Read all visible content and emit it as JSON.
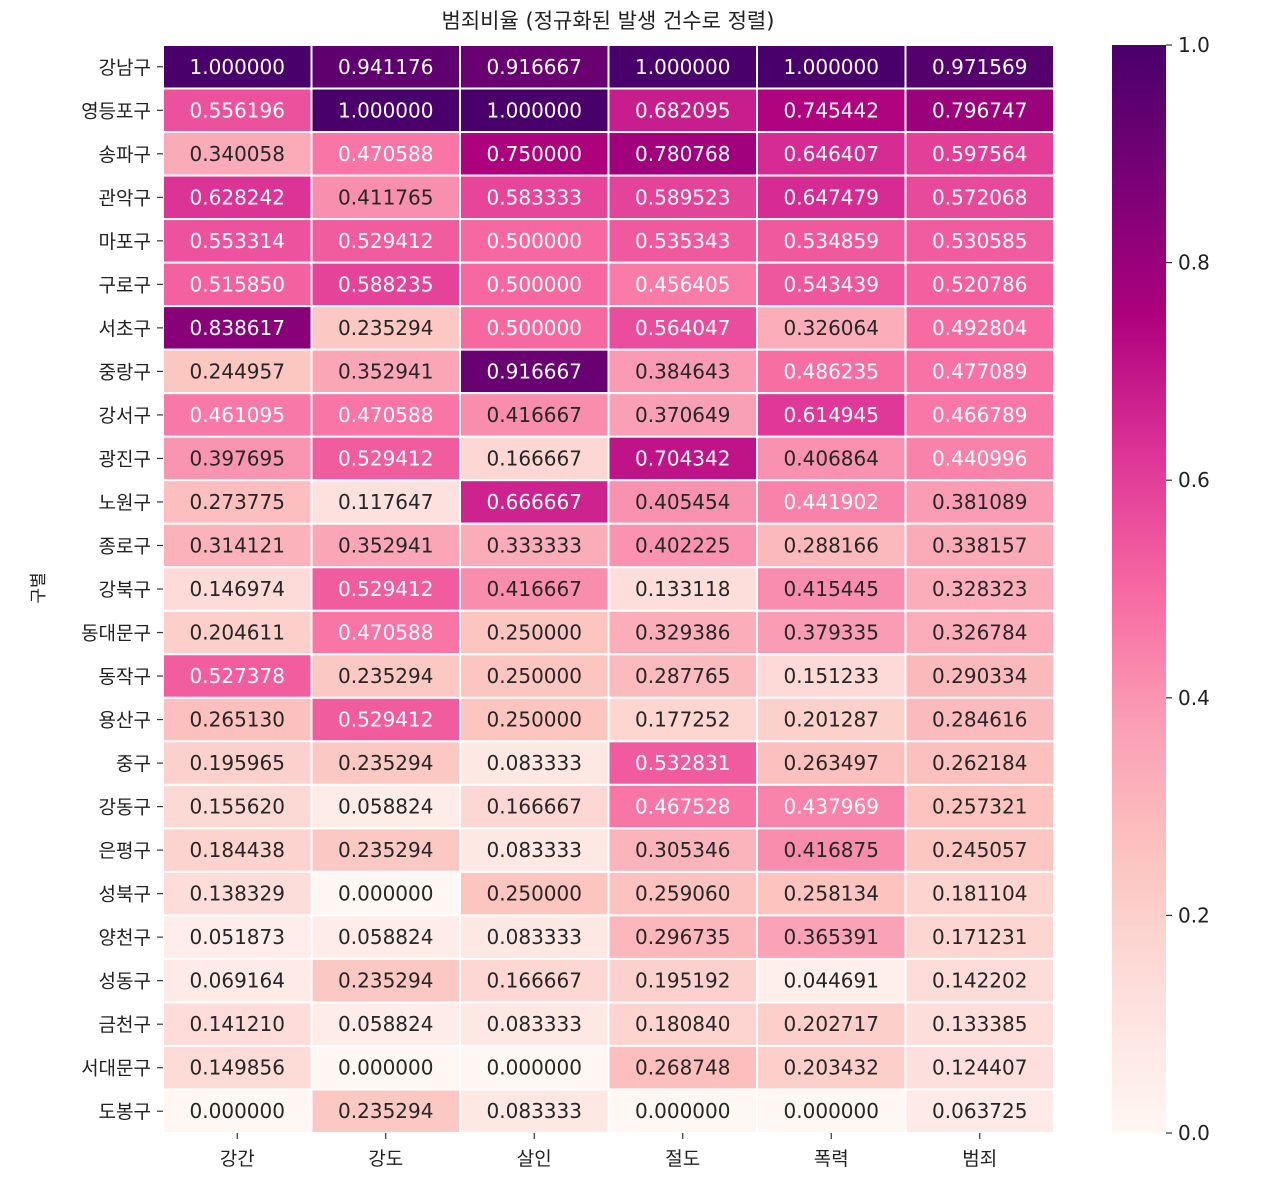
{
  "chart_data": {
    "type": "heatmap",
    "title": "범죄비율 (정규화된 발생 건수로 정렬)",
    "xlabel": "",
    "ylabel": "구별",
    "colormap": "RdPu",
    "colorbar": {
      "range": [
        0.0,
        1.0
      ],
      "ticks": [
        "0.0",
        "0.2",
        "0.4",
        "0.6",
        "0.8",
        "1.0"
      ]
    },
    "columns": [
      "강간",
      "강도",
      "살인",
      "절도",
      "폭력",
      "범죄"
    ],
    "rows": [
      "강남구",
      "영등포구",
      "송파구",
      "관악구",
      "마포구",
      "구로구",
      "서초구",
      "중랑구",
      "강서구",
      "광진구",
      "노원구",
      "종로구",
      "강북구",
      "동대문구",
      "동작구",
      "용산구",
      "중구",
      "강동구",
      "은평구",
      "성북구",
      "양천구",
      "성동구",
      "금천구",
      "서대문구",
      "도봉구"
    ],
    "values": [
      [
        "1.000000",
        "0.941176",
        "0.916667",
        "1.000000",
        "1.000000",
        "0.971569"
      ],
      [
        "0.556196",
        "1.000000",
        "1.000000",
        "0.682095",
        "0.745442",
        "0.796747"
      ],
      [
        "0.340058",
        "0.470588",
        "0.750000",
        "0.780768",
        "0.646407",
        "0.597564"
      ],
      [
        "0.628242",
        "0.411765",
        "0.583333",
        "0.589523",
        "0.647479",
        "0.572068"
      ],
      [
        "0.553314",
        "0.529412",
        "0.500000",
        "0.535343",
        "0.534859",
        "0.530585"
      ],
      [
        "0.515850",
        "0.588235",
        "0.500000",
        "0.456405",
        "0.543439",
        "0.520786"
      ],
      [
        "0.838617",
        "0.235294",
        "0.500000",
        "0.564047",
        "0.326064",
        "0.492804"
      ],
      [
        "0.244957",
        "0.352941",
        "0.916667",
        "0.384643",
        "0.486235",
        "0.477089"
      ],
      [
        "0.461095",
        "0.470588",
        "0.416667",
        "0.370649",
        "0.614945",
        "0.466789"
      ],
      [
        "0.397695",
        "0.529412",
        "0.166667",
        "0.704342",
        "0.406864",
        "0.440996"
      ],
      [
        "0.273775",
        "0.117647",
        "0.666667",
        "0.405454",
        "0.441902",
        "0.381089"
      ],
      [
        "0.314121",
        "0.352941",
        "0.333333",
        "0.402225",
        "0.288166",
        "0.338157"
      ],
      [
        "0.146974",
        "0.529412",
        "0.416667",
        "0.133118",
        "0.415445",
        "0.328323"
      ],
      [
        "0.204611",
        "0.470588",
        "0.250000",
        "0.329386",
        "0.379335",
        "0.326784"
      ],
      [
        "0.527378",
        "0.235294",
        "0.250000",
        "0.287765",
        "0.151233",
        "0.290334"
      ],
      [
        "0.265130",
        "0.529412",
        "0.250000",
        "0.177252",
        "0.201287",
        "0.284616"
      ],
      [
        "0.195965",
        "0.235294",
        "0.083333",
        "0.532831",
        "0.263497",
        "0.262184"
      ],
      [
        "0.155620",
        "0.058824",
        "0.166667",
        "0.467528",
        "0.437969",
        "0.257321"
      ],
      [
        "0.184438",
        "0.235294",
        "0.083333",
        "0.305346",
        "0.416875",
        "0.245057"
      ],
      [
        "0.138329",
        "0.000000",
        "0.250000",
        "0.259060",
        "0.258134",
        "0.181104"
      ],
      [
        "0.051873",
        "0.058824",
        "0.083333",
        "0.296735",
        "0.365391",
        "0.171231"
      ],
      [
        "0.069164",
        "0.235294",
        "0.166667",
        "0.195192",
        "0.044691",
        "0.142202"
      ],
      [
        "0.141210",
        "0.058824",
        "0.083333",
        "0.180840",
        "0.202717",
        "0.133385"
      ],
      [
        "0.149856",
        "0.000000",
        "0.000000",
        "0.268748",
        "0.203432",
        "0.124407"
      ],
      [
        "0.000000",
        "0.235294",
        "0.083333",
        "0.000000",
        "0.000000",
        "0.063725"
      ]
    ]
  }
}
